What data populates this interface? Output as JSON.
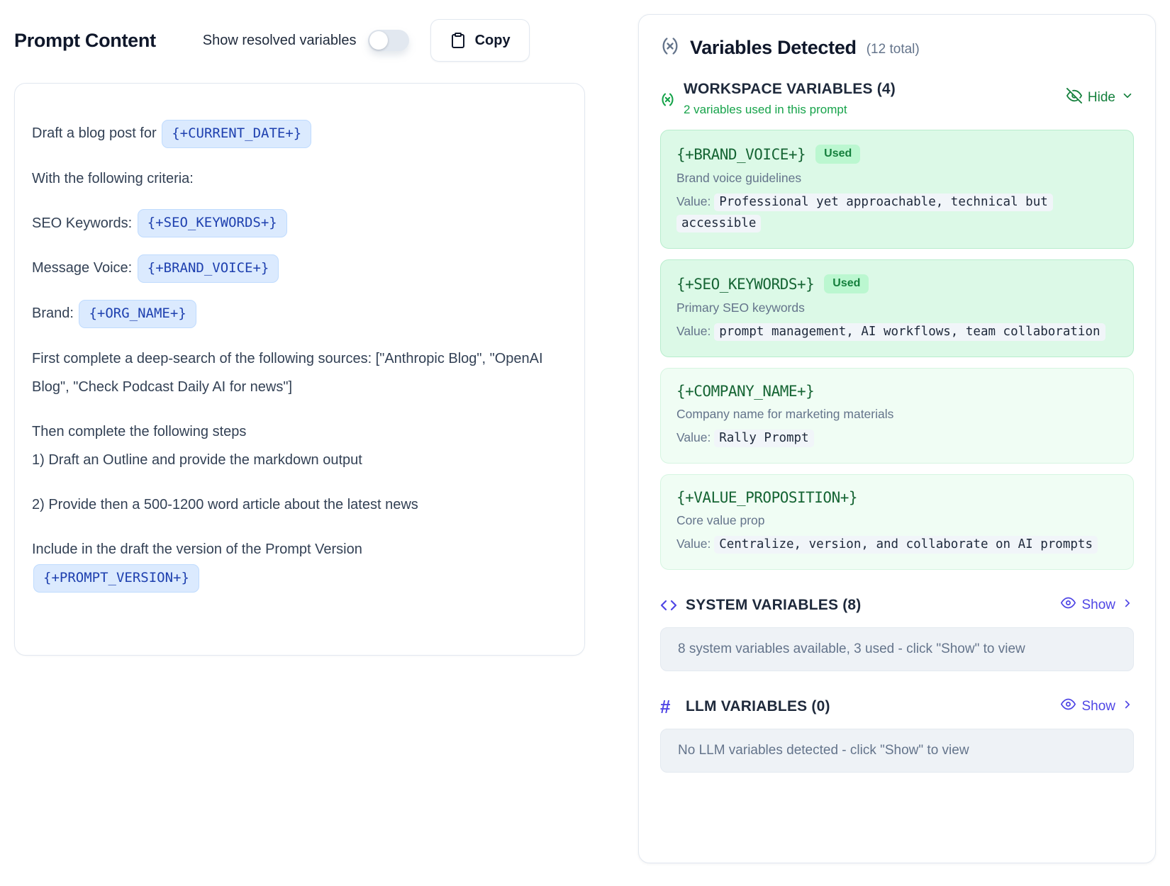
{
  "prompt": {
    "title": "Prompt Content",
    "toggle_label": "Show resolved variables",
    "toggle_state": "off",
    "copy_label": "Copy",
    "paragraphs": [
      {
        "lines": [
          [
            {
              "text": "Draft a blog post for "
            },
            {
              "chip": "{+CURRENT_DATE+}"
            }
          ]
        ]
      },
      {
        "lines": [
          [
            {
              "text": "With the following criteria:"
            }
          ]
        ]
      },
      {
        "lines": [
          [
            {
              "text": "SEO Keywords: "
            },
            {
              "chip": "{+SEO_KEYWORDS+}"
            }
          ]
        ]
      },
      {
        "lines": [
          [
            {
              "text": "Message Voice: "
            },
            {
              "chip": "{+BRAND_VOICE+}"
            }
          ]
        ]
      },
      {
        "lines": [
          [
            {
              "text": "Brand: "
            },
            {
              "chip": "{+ORG_NAME+}"
            }
          ]
        ]
      },
      {
        "lines": [
          [
            {
              "text": "First complete a deep-search of the following sources: [\"Anthropic Blog\", \"OpenAI Blog\", \"Check Podcast Daily AI for news\"]"
            }
          ]
        ]
      },
      {
        "lines": [
          [
            {
              "text": "Then complete the following steps"
            }
          ],
          [
            {
              "text": "1) Draft an Outline and provide the markdown output"
            }
          ]
        ]
      },
      {
        "lines": [
          [
            {
              "text": "2) Provide then a 500-1200 word article about the latest news"
            }
          ]
        ]
      },
      {
        "lines": [
          [
            {
              "text": "Include in the draft the version of the Prompt Version"
            }
          ],
          [
            {
              "chip": "{+PROMPT_VERSION+}"
            }
          ]
        ]
      }
    ]
  },
  "panel": {
    "title": "Variables Detected",
    "total_label": "(12 total)",
    "workspace": {
      "title": "WORKSPACE VARIABLES (4)",
      "subtitle": "2 variables used in this prompt",
      "hide_label": "Hide",
      "cards": [
        {
          "name": "{+BRAND_VOICE+}",
          "used": true,
          "used_label": "Used",
          "description": "Brand voice guidelines",
          "value_label": "Value:",
          "value": "Professional yet approachable, technical but accessible"
        },
        {
          "name": "{+SEO_KEYWORDS+}",
          "used": true,
          "used_label": "Used",
          "description": "Primary SEO keywords",
          "value_label": "Value:",
          "value": "prompt management, AI workflows, team collaboration"
        },
        {
          "name": "{+COMPANY_NAME+}",
          "used": false,
          "description": "Company name for marketing materials",
          "value_label": "Value:",
          "value": "Rally Prompt"
        },
        {
          "name": "{+VALUE_PROPOSITION+}",
          "used": false,
          "description": "Core value prop",
          "value_label": "Value:",
          "value": "Centralize, version, and collaborate on AI prompts"
        }
      ]
    },
    "system": {
      "title": "SYSTEM VARIABLES (8)",
      "show_label": "Show",
      "info": "8 system variables available, 3 used - click \"Show\" to view"
    },
    "llm": {
      "title": "LLM VARIABLES (0)",
      "show_label": "Show",
      "info": "No LLM variables detected - click \"Show\" to view"
    }
  },
  "colors": {
    "accent_green": "#16a34a",
    "dark_green": "#166534",
    "accent_indigo": "#4f46e5",
    "chip_blue_bg": "#dbeafe",
    "chip_blue_text": "#1e40af",
    "used_card_bg": "#dcf9e7",
    "unused_card_bg": "#f0fdf4",
    "value_highlight": "#f1f5f9"
  }
}
